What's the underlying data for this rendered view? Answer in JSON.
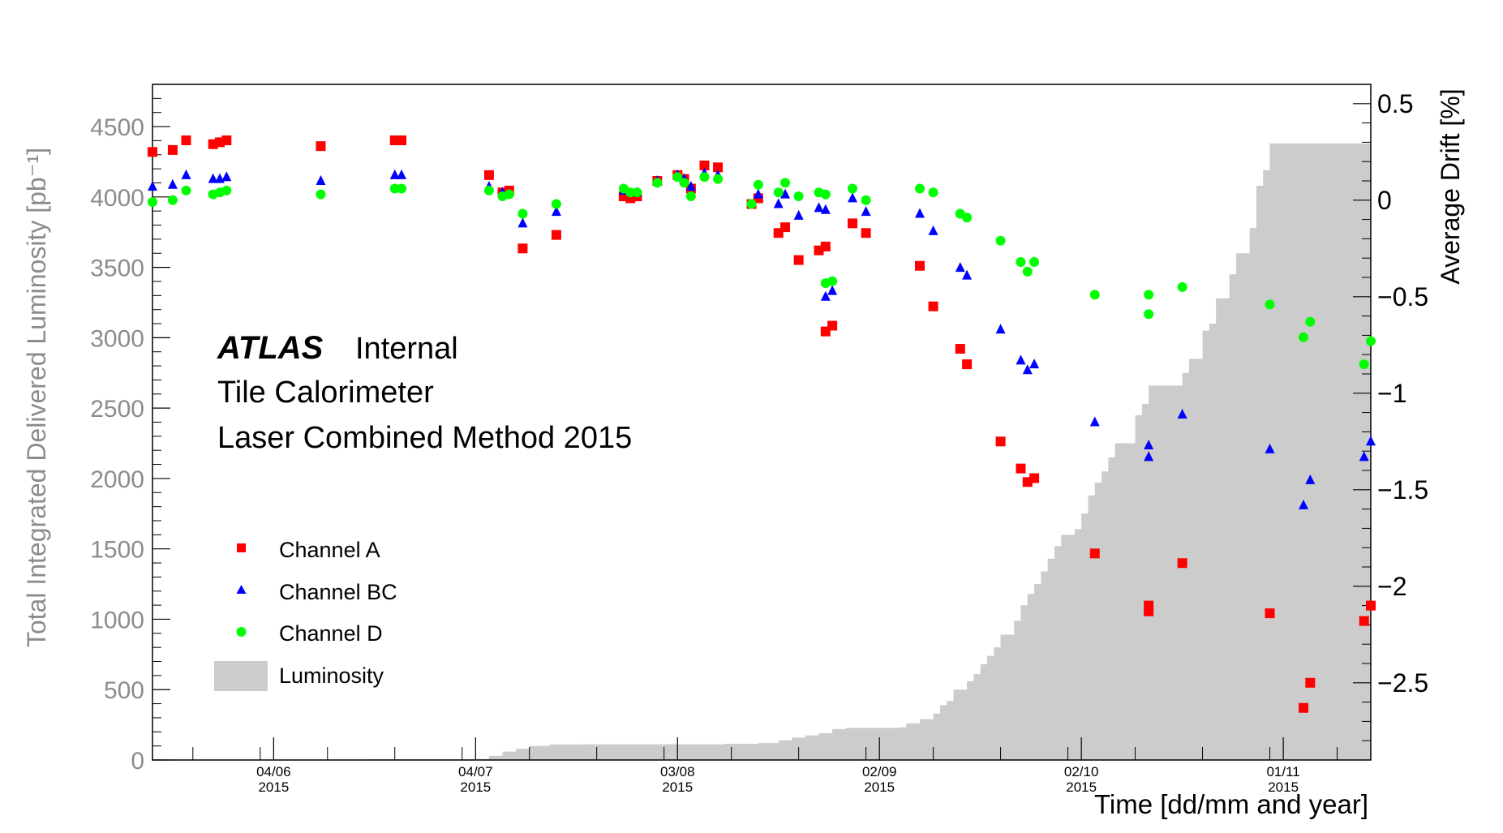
{
  "chart_data": {
    "type": "scatter",
    "title": "",
    "annotation": {
      "brand": "ATLAS",
      "brand_suffix": "Internal",
      "line2": "Tile Calorimeter",
      "line3": "Laser Combined Method 2015"
    },
    "xlabel": "Time [dd/mm and year]",
    "ylabel_left": "Total Integrated Delivered Luminosity [pb⁻¹]",
    "ylabel_right": "Average Drift [%]",
    "xlim": [
      "2015-05-17",
      "2015-11-14"
    ],
    "ylim_left": [
      0,
      4800
    ],
    "ylim_right": [
      -2.9,
      0.6
    ],
    "x_ticks": [
      {
        "date": "2015-06-04",
        "label": "04/06",
        "year": "2015"
      },
      {
        "date": "2015-07-04",
        "label": "04/07",
        "year": "2015"
      },
      {
        "date": "2015-08-03",
        "label": "03/08",
        "year": "2015"
      },
      {
        "date": "2015-09-02",
        "label": "02/09",
        "year": "2015"
      },
      {
        "date": "2015-10-02",
        "label": "02/10",
        "year": "2015"
      },
      {
        "date": "2015-11-01",
        "label": "01/11",
        "year": "2015"
      }
    ],
    "y_left_ticks": [
      "0",
      "500",
      "1000",
      "1500",
      "2000",
      "2500",
      "3000",
      "3500",
      "4000",
      "4500"
    ],
    "y_right_ticks": [
      {
        "v": 0.5,
        "label": "0.5"
      },
      {
        "v": 0,
        "label": "0"
      },
      {
        "v": -0.5,
        "label": "−0.5"
      },
      {
        "v": -1,
        "label": "−1"
      },
      {
        "v": -1.5,
        "label": "−1.5"
      },
      {
        "v": -2,
        "label": "−2"
      },
      {
        "v": -2.5,
        "label": "−2.5"
      }
    ],
    "legend": {
      "placement": "left",
      "entries": [
        {
          "name": "Channel A",
          "marker": "square",
          "color": "#ff0000"
        },
        {
          "name": "Channel BC",
          "marker": "triangle",
          "color": "#0000ff"
        },
        {
          "name": "Channel D",
          "marker": "circle",
          "color": "#00ff00"
        },
        {
          "name": "Luminosity",
          "marker": "fill",
          "color": "#cccccc"
        }
      ]
    },
    "luminosity": [
      [
        "2015-05-17",
        0
      ],
      [
        "2015-05-30",
        0
      ],
      [
        "2015-06-05",
        3
      ],
      [
        "2015-06-18",
        5
      ],
      [
        "2015-07-04",
        8
      ],
      [
        "2015-07-06",
        30
      ],
      [
        "2015-07-08",
        60
      ],
      [
        "2015-07-10",
        80
      ],
      [
        "2015-07-12",
        100
      ],
      [
        "2015-07-15",
        110
      ],
      [
        "2015-07-20",
        112
      ],
      [
        "2015-08-10",
        115
      ],
      [
        "2015-08-15",
        120
      ],
      [
        "2015-08-18",
        140
      ],
      [
        "2015-08-20",
        160
      ],
      [
        "2015-08-22",
        175
      ],
      [
        "2015-08-24",
        190
      ],
      [
        "2015-08-26",
        220
      ],
      [
        "2015-08-28",
        228
      ],
      [
        "2015-09-05",
        232
      ],
      [
        "2015-09-06",
        260
      ],
      [
        "2015-09-08",
        290
      ],
      [
        "2015-09-10",
        330
      ],
      [
        "2015-09-11",
        390
      ],
      [
        "2015-09-12",
        420
      ],
      [
        "2015-09-13",
        500
      ],
      [
        "2015-09-15",
        560
      ],
      [
        "2015-09-16",
        610
      ],
      [
        "2015-09-17",
        680
      ],
      [
        "2015-09-18",
        740
      ],
      [
        "2015-09-19",
        800
      ],
      [
        "2015-09-20",
        890
      ],
      [
        "2015-09-22",
        990
      ],
      [
        "2015-09-23",
        1100
      ],
      [
        "2015-09-24",
        1180
      ],
      [
        "2015-09-25",
        1250
      ],
      [
        "2015-09-26",
        1340
      ],
      [
        "2015-09-27",
        1430
      ],
      [
        "2015-09-28",
        1520
      ],
      [
        "2015-09-29",
        1600
      ],
      [
        "2015-10-01",
        1640
      ],
      [
        "2015-10-02",
        1750
      ],
      [
        "2015-10-03",
        1880
      ],
      [
        "2015-10-04",
        1970
      ],
      [
        "2015-10-05",
        2050
      ],
      [
        "2015-10-06",
        2150
      ],
      [
        "2015-10-07",
        2250
      ],
      [
        "2015-10-10",
        2450
      ],
      [
        "2015-10-11",
        2530
      ],
      [
        "2015-10-12",
        2660
      ],
      [
        "2015-10-17",
        2750
      ],
      [
        "2015-10-18",
        2850
      ],
      [
        "2015-10-20",
        3050
      ],
      [
        "2015-10-21",
        3100
      ],
      [
        "2015-10-22",
        3280
      ],
      [
        "2015-10-24",
        3450
      ],
      [
        "2015-10-25",
        3600
      ],
      [
        "2015-10-27",
        3780
      ],
      [
        "2015-10-28",
        4080
      ],
      [
        "2015-10-29",
        4190
      ],
      [
        "2015-10-30",
        4380
      ],
      [
        "2015-11-14",
        4380
      ]
    ],
    "series": [
      {
        "name": "Channel A",
        "marker": "square",
        "color": "#ff0000",
        "points": [
          [
            "2015-05-17",
            0.25
          ],
          [
            "2015-05-20",
            0.26
          ],
          [
            "2015-05-22",
            0.31
          ],
          [
            "2015-05-26",
            0.29
          ],
          [
            "2015-05-27",
            0.3
          ],
          [
            "2015-05-28",
            0.31
          ],
          [
            "2015-06-11",
            0.28
          ],
          [
            "2015-06-22",
            0.31
          ],
          [
            "2015-06-23",
            0.31
          ],
          [
            "2015-07-06",
            0.13
          ],
          [
            "2015-07-08",
            0.04
          ],
          [
            "2015-07-09",
            0.05
          ],
          [
            "2015-07-11",
            -0.25
          ],
          [
            "2015-07-16",
            -0.18
          ],
          [
            "2015-07-26",
            0.02
          ],
          [
            "2015-07-27",
            0.01
          ],
          [
            "2015-07-28",
            0.02
          ],
          [
            "2015-07-31",
            0.1
          ],
          [
            "2015-08-03",
            0.13
          ],
          [
            "2015-08-04",
            0.11
          ],
          [
            "2015-08-05",
            0.06
          ],
          [
            "2015-08-07",
            0.18
          ],
          [
            "2015-08-09",
            0.17
          ],
          [
            "2015-08-14",
            -0.02
          ],
          [
            "2015-08-15",
            0.01
          ],
          [
            "2015-08-18",
            -0.17
          ],
          [
            "2015-08-19",
            -0.14
          ],
          [
            "2015-08-21",
            -0.31
          ],
          [
            "2015-08-24",
            -0.26
          ],
          [
            "2015-08-25",
            -0.24
          ],
          [
            "2015-08-25",
            -0.68
          ],
          [
            "2015-08-26",
            -0.65
          ],
          [
            "2015-08-29",
            -0.12
          ],
          [
            "2015-08-31",
            -0.17
          ],
          [
            "2015-09-08",
            -0.34
          ],
          [
            "2015-09-10",
            -0.55
          ],
          [
            "2015-09-14",
            -0.77
          ],
          [
            "2015-09-15",
            -0.85
          ],
          [
            "2015-09-20",
            -1.25
          ],
          [
            "2015-09-23",
            -1.39
          ],
          [
            "2015-09-24",
            -1.46
          ],
          [
            "2015-09-25",
            -1.44
          ],
          [
            "2015-10-04",
            -1.83
          ],
          [
            "2015-10-12",
            -2.13
          ],
          [
            "2015-10-12",
            -2.1
          ],
          [
            "2015-10-17",
            -1.88
          ],
          [
            "2015-10-30",
            -2.14
          ],
          [
            "2015-11-04",
            -2.63
          ],
          [
            "2015-11-05",
            -2.5
          ],
          [
            "2015-11-13",
            -2.18
          ],
          [
            "2015-11-14",
            -2.1
          ]
        ]
      },
      {
        "name": "Channel BC",
        "marker": "triangle",
        "color": "#0000ff",
        "points": [
          [
            "2015-05-17",
            0.07
          ],
          [
            "2015-05-20",
            0.08
          ],
          [
            "2015-05-22",
            0.13
          ],
          [
            "2015-05-26",
            0.11
          ],
          [
            "2015-05-27",
            0.11
          ],
          [
            "2015-05-28",
            0.12
          ],
          [
            "2015-06-11",
            0.1
          ],
          [
            "2015-06-22",
            0.13
          ],
          [
            "2015-06-23",
            0.13
          ],
          [
            "2015-07-06",
            0.07
          ],
          [
            "2015-07-08",
            0.04
          ],
          [
            "2015-07-11",
            -0.12
          ],
          [
            "2015-07-16",
            -0.06
          ],
          [
            "2015-07-26",
            0.05
          ],
          [
            "2015-07-28",
            0.04
          ],
          [
            "2015-07-31",
            0.1
          ],
          [
            "2015-08-03",
            0.13
          ],
          [
            "2015-08-04",
            0.11
          ],
          [
            "2015-08-05",
            0.07
          ],
          [
            "2015-08-07",
            0.14
          ],
          [
            "2015-08-09",
            0.13
          ],
          [
            "2015-08-15",
            0.03
          ],
          [
            "2015-08-18",
            -0.02
          ],
          [
            "2015-08-19",
            0.03
          ],
          [
            "2015-08-21",
            -0.08
          ],
          [
            "2015-08-24",
            -0.04
          ],
          [
            "2015-08-25",
            -0.05
          ],
          [
            "2015-08-25",
            -0.5
          ],
          [
            "2015-08-26",
            -0.47
          ],
          [
            "2015-08-29",
            0.01
          ],
          [
            "2015-08-31",
            -0.06
          ],
          [
            "2015-09-08",
            -0.07
          ],
          [
            "2015-09-10",
            -0.16
          ],
          [
            "2015-09-14",
            -0.35
          ],
          [
            "2015-09-15",
            -0.39
          ],
          [
            "2015-09-20",
            -0.67
          ],
          [
            "2015-09-23",
            -0.83
          ],
          [
            "2015-09-24",
            -0.88
          ],
          [
            "2015-09-25",
            -0.85
          ],
          [
            "2015-10-04",
            -1.15
          ],
          [
            "2015-10-12",
            -1.33
          ],
          [
            "2015-10-12",
            -1.27
          ],
          [
            "2015-10-17",
            -1.11
          ],
          [
            "2015-10-30",
            -1.29
          ],
          [
            "2015-11-04",
            -1.58
          ],
          [
            "2015-11-05",
            -1.45
          ],
          [
            "2015-11-13",
            -1.33
          ],
          [
            "2015-11-14",
            -1.25
          ]
        ]
      },
      {
        "name": "Channel D",
        "marker": "circle",
        "color": "#00ff00",
        "points": [
          [
            "2015-05-17",
            -0.01
          ],
          [
            "2015-05-20",
            0.0
          ],
          [
            "2015-05-22",
            0.05
          ],
          [
            "2015-05-26",
            0.03
          ],
          [
            "2015-05-27",
            0.04
          ],
          [
            "2015-05-28",
            0.05
          ],
          [
            "2015-06-11",
            0.03
          ],
          [
            "2015-06-22",
            0.06
          ],
          [
            "2015-06-23",
            0.06
          ],
          [
            "2015-07-06",
            0.05
          ],
          [
            "2015-07-08",
            0.02
          ],
          [
            "2015-07-09",
            0.03
          ],
          [
            "2015-07-11",
            -0.07
          ],
          [
            "2015-07-16",
            -0.02
          ],
          [
            "2015-07-26",
            0.06
          ],
          [
            "2015-07-27",
            0.04
          ],
          [
            "2015-07-28",
            0.04
          ],
          [
            "2015-07-31",
            0.09
          ],
          [
            "2015-08-03",
            0.12
          ],
          [
            "2015-08-04",
            0.09
          ],
          [
            "2015-08-05",
            0.02
          ],
          [
            "2015-08-07",
            0.12
          ],
          [
            "2015-08-09",
            0.11
          ],
          [
            "2015-08-14",
            -0.02
          ],
          [
            "2015-08-15",
            0.08
          ],
          [
            "2015-08-18",
            0.04
          ],
          [
            "2015-08-19",
            0.09
          ],
          [
            "2015-08-21",
            0.02
          ],
          [
            "2015-08-24",
            0.04
          ],
          [
            "2015-08-25",
            0.03
          ],
          [
            "2015-08-25",
            -0.43
          ],
          [
            "2015-08-26",
            -0.42
          ],
          [
            "2015-08-29",
            0.06
          ],
          [
            "2015-08-31",
            0.0
          ],
          [
            "2015-09-08",
            0.06
          ],
          [
            "2015-09-10",
            0.04
          ],
          [
            "2015-09-14",
            -0.07
          ],
          [
            "2015-09-15",
            -0.09
          ],
          [
            "2015-09-20",
            -0.21
          ],
          [
            "2015-09-23",
            -0.32
          ],
          [
            "2015-09-24",
            -0.37
          ],
          [
            "2015-09-25",
            -0.32
          ],
          [
            "2015-10-04",
            -0.49
          ],
          [
            "2015-10-12",
            -0.59
          ],
          [
            "2015-10-12",
            -0.49
          ],
          [
            "2015-10-17",
            -0.45
          ],
          [
            "2015-10-30",
            -0.54
          ],
          [
            "2015-11-04",
            -0.71
          ],
          [
            "2015-11-05",
            -0.63
          ],
          [
            "2015-11-13",
            -0.85
          ],
          [
            "2015-11-14",
            -0.73
          ]
        ]
      }
    ]
  }
}
